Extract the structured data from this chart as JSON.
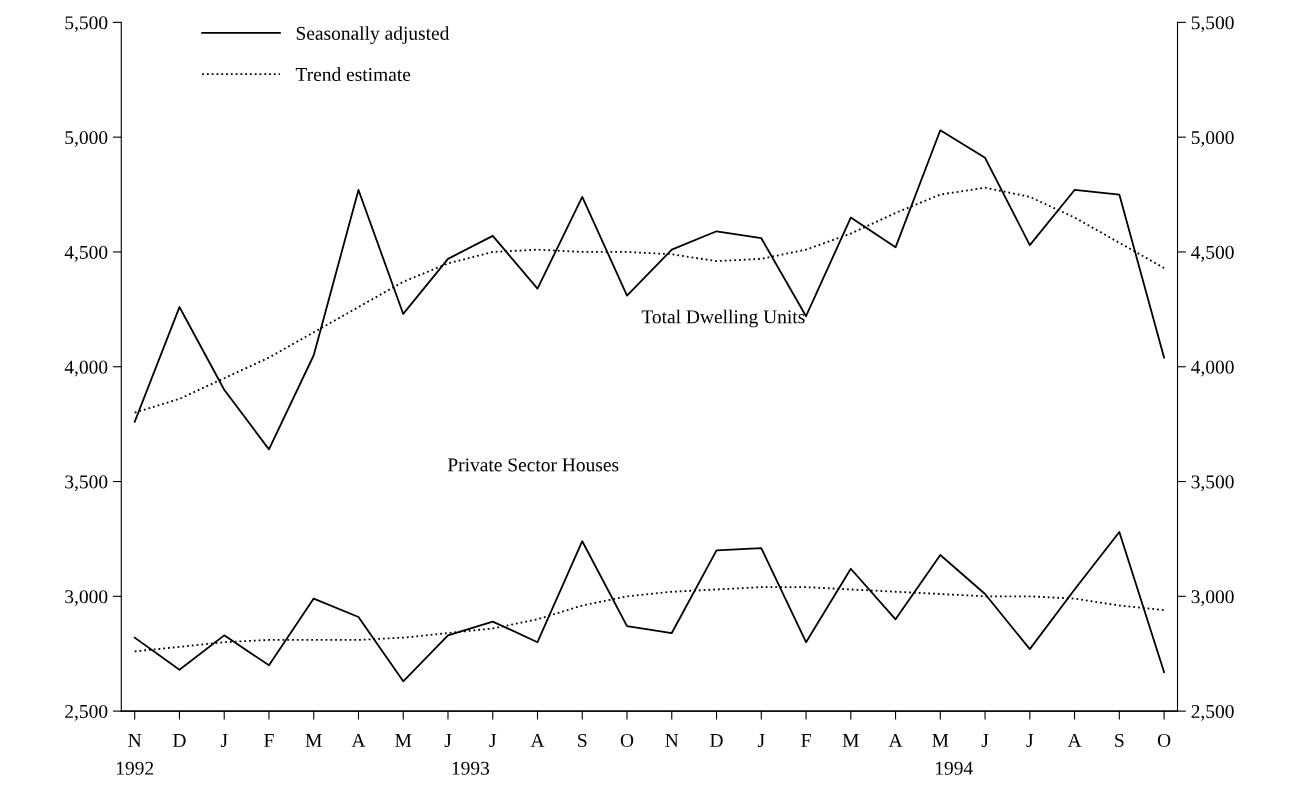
{
  "chart_data": {
    "type": "line",
    "categories": [
      "N",
      "D",
      "J",
      "F",
      "M",
      "A",
      "M",
      "J",
      "J",
      "A",
      "S",
      "O",
      "N",
      "D",
      "J",
      "F",
      "M",
      "A",
      "M",
      "J",
      "J",
      "A",
      "S",
      "O"
    ],
    "series": [
      {
        "name": "Seasonally adjusted",
        "color": "#000000",
        "line_style": "solid",
        "values": [
          3760,
          4260,
          3900,
          3640,
          4050,
          4770,
          4230,
          4470,
          4570,
          4340,
          4740,
          4310,
          4510,
          4590,
          4560,
          4220,
          4650,
          4520,
          5030,
          4910,
          4530,
          4770,
          4750,
          4040
        ]
      },
      {
        "name": "Trend estimate",
        "color": "#000000",
        "line_style": "dotted",
        "values": [
          3800,
          3860,
          3950,
          4040,
          4150,
          4260,
          4370,
          4450,
          4500,
          4510,
          4500,
          4500,
          4490,
          4460,
          4470,
          4510,
          4580,
          4670,
          4750,
          4780,
          4740,
          4650,
          4540,
          4430
        ]
      },
      {
        "color": "#000000",
        "line_style": "solid",
        "values": [
          2820,
          2680,
          2830,
          2700,
          2990,
          2910,
          2630,
          2830,
          2890,
          2800,
          3240,
          2870,
          2840,
          3200,
          3210,
          2800,
          3120,
          2900,
          3180,
          3010,
          2770,
          3030,
          3280,
          2670
        ]
      },
      {
        "color": "#000000",
        "line_style": "dotted",
        "values": [
          2760,
          2780,
          2800,
          2810,
          2810,
          2810,
          2820,
          2840,
          2860,
          2900,
          2960,
          3000,
          3020,
          3030,
          3040,
          3040,
          3030,
          3020,
          3010,
          3000,
          3000,
          2990,
          2960,
          2940
        ]
      }
    ],
    "ylim": [
      2500,
      5500
    ],
    "yticks": [
      {
        "value": 2500,
        "label": "2,500"
      },
      {
        "value": 3000,
        "label": "3,000"
      },
      {
        "value": 3500,
        "label": "3,500"
      },
      {
        "value": 4000,
        "label": "4,000"
      },
      {
        "value": 4500,
        "label": "4,500"
      },
      {
        "value": 5000,
        "label": "5,000"
      },
      {
        "value": 5500,
        "label": "5,500"
      }
    ],
    "y2lim": [
      2500,
      5500
    ],
    "y2ticks": [
      {
        "value": 2500,
        "label": "2,500"
      },
      {
        "value": 3000,
        "label": "3,000"
      },
      {
        "value": 3500,
        "label": "3,500"
      },
      {
        "value": 4000,
        "label": "4,000"
      },
      {
        "value": 4500,
        "label": "4,500"
      },
      {
        "value": 5000,
        "label": "5,000"
      },
      {
        "value": 5500,
        "label": "5,500"
      }
    ],
    "annotations": [
      "Total Dwelling Units",
      "Private Sector Houses",
      "1992",
      "1993",
      "1994"
    ],
    "grid": false,
    "legend": "top left"
  }
}
